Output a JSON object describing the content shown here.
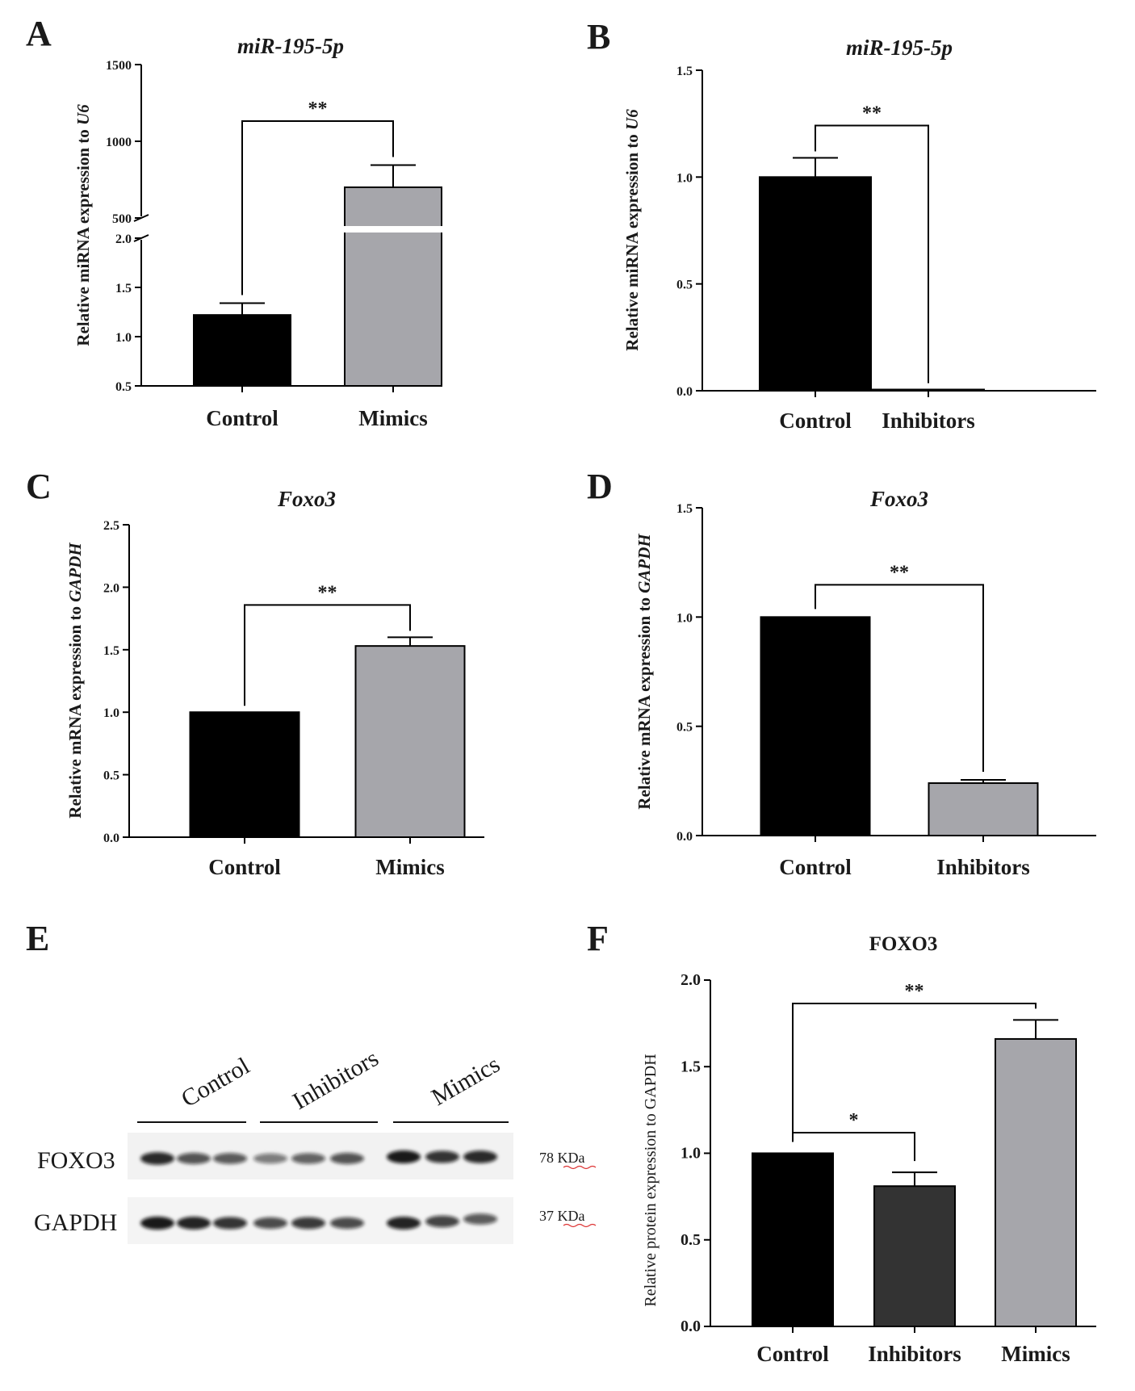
{
  "figure": {
    "panels": {
      "A": "A",
      "B": "B",
      "C": "C",
      "D": "D",
      "E": "E",
      "F": "F"
    },
    "blot": {
      "lane_groups": [
        "Control",
        "Inhibitors",
        "Mimics"
      ],
      "rows": [
        {
          "protein": "FOXO3",
          "size": "78 KDa",
          "intensities": [
            0.9,
            0.65,
            0.6,
            0.4,
            0.55,
            0.65,
            1.0,
            0.85,
            0.9
          ]
        },
        {
          "protein": "GAPDH",
          "size": "37 KDa",
          "intensities": [
            1.0,
            0.95,
            0.85,
            0.7,
            0.8,
            0.7,
            0.95,
            0.75,
            0.6
          ]
        }
      ]
    }
  },
  "colors": {
    "black": "#000000",
    "gray": "#a6a6ab",
    "darkgray": "#333333"
  },
  "chart_data": [
    {
      "panel": "A",
      "type": "bar",
      "title": "miR-195-5p",
      "ylabel": "Relative miRNA expression to U6",
      "ylabel_main": "Relative miRNA expression to ",
      "ylabel_ital": "U6",
      "categories": [
        "Control",
        "Mimics"
      ],
      "values": [
        1.22,
        700
      ],
      "errors": [
        0.12,
        145
      ],
      "colors": [
        "#000000",
        "#a6a6ab"
      ],
      "axis_break": true,
      "lower_ylim": [
        0.5,
        2.0
      ],
      "lower_ticks": [
        0.5,
        1.0,
        1.5,
        2.0
      ],
      "upper_ylim": [
        500,
        1500
      ],
      "upper_ticks": [
        500,
        1000,
        1500
      ],
      "lower_tick_labels": [
        "0.5",
        "1.0",
        "1.5",
        "2.0"
      ],
      "upper_tick_labels": [
        "500",
        "1000",
        "1500"
      ],
      "significance": [
        {
          "from": 0,
          "to": 1,
          "label": "**"
        }
      ]
    },
    {
      "panel": "B",
      "type": "bar",
      "title": "miR-195-5p",
      "ylabel": "Relative miRNA expression to U6",
      "ylabel_main": "Relative miRNA expression to ",
      "ylabel_ital": "U6",
      "categories": [
        "Control",
        "Inhibitors"
      ],
      "values": [
        1.0,
        0.005
      ],
      "errors": [
        0.09,
        0.0
      ],
      "colors": [
        "#000000",
        "#000000"
      ],
      "ylim": [
        0,
        1.5
      ],
      "ticks": [
        0.0,
        0.5,
        1.0,
        1.5
      ],
      "tick_labels": [
        "0.0",
        "0.5",
        "1.0",
        "1.5"
      ],
      "significance": [
        {
          "from": 0,
          "to": 1,
          "label": "**"
        }
      ]
    },
    {
      "panel": "C",
      "type": "bar",
      "title": "Foxo3",
      "ylabel": "Relative mRNA expression to GAPDH",
      "ylabel_main": "Relative mRNA expression to ",
      "ylabel_ital": "GAPDH",
      "categories": [
        "Control",
        "Mimics"
      ],
      "values": [
        1.0,
        1.53
      ],
      "errors": [
        0.0,
        0.07
      ],
      "colors": [
        "#000000",
        "#a6a6ab"
      ],
      "ylim": [
        0,
        2.5
      ],
      "ticks": [
        0.0,
        0.5,
        1.0,
        1.5,
        2.0,
        2.5
      ],
      "tick_labels": [
        "0.0",
        "0.5",
        "1.0",
        "1.5",
        "2.0",
        "2.5"
      ],
      "significance": [
        {
          "from": 0,
          "to": 1,
          "label": "**"
        }
      ]
    },
    {
      "panel": "D",
      "type": "bar",
      "title": "Foxo3",
      "ylabel": "Relative mRNA expression to GAPDH",
      "ylabel_main": "Relative mRNA expression to ",
      "ylabel_ital": "GAPDH",
      "categories": [
        "Control",
        "Inhibitors"
      ],
      "values": [
        1.0,
        0.24
      ],
      "errors": [
        0.0,
        0.015
      ],
      "colors": [
        "#000000",
        "#a6a6ab"
      ],
      "ylim": [
        0,
        1.5
      ],
      "ticks": [
        0.0,
        0.5,
        1.0,
        1.5
      ],
      "tick_labels": [
        "0.0",
        "0.5",
        "1.0",
        "1.5"
      ],
      "significance": [
        {
          "from": 0,
          "to": 1,
          "label": "**"
        }
      ]
    },
    {
      "panel": "F",
      "type": "bar",
      "title": "FOXO3",
      "ylabel": "Relative protein expression to GAPDH",
      "categories": [
        "Control",
        "Inhibitors",
        "Mimics"
      ],
      "values": [
        1.0,
        0.81,
        1.66
      ],
      "errors": [
        0.0,
        0.08,
        0.11
      ],
      "colors": [
        "#000000",
        "#333333",
        "#a6a6ab"
      ],
      "ylim": [
        0,
        2.0
      ],
      "ticks": [
        0.0,
        0.5,
        1.0,
        1.5,
        2.0
      ],
      "tick_labels": [
        "0.0",
        "0.5",
        "1.0",
        "1.5",
        "2.0"
      ],
      "significance": [
        {
          "from": 0,
          "to": 1,
          "label": "*"
        },
        {
          "from": 0,
          "to": 2,
          "label": "**"
        }
      ]
    }
  ]
}
